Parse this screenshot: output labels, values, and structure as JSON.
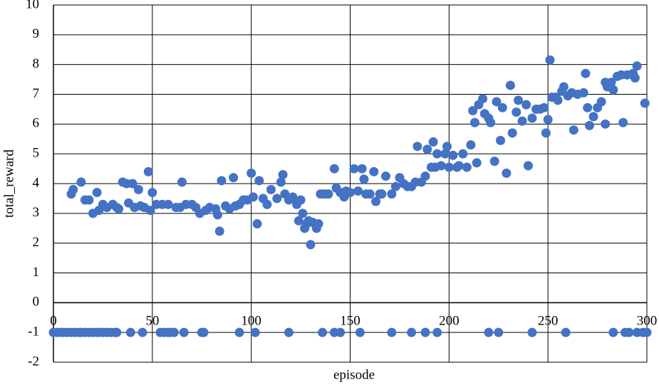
{
  "chart_data": {
    "type": "scatter",
    "xlabel": "episode",
    "ylabel": "total_reward",
    "xlim": [
      0,
      300
    ],
    "ylim": [
      -2,
      10
    ],
    "xticks": [
      0,
      50,
      100,
      150,
      200,
      250,
      300
    ],
    "yticks": [
      -2,
      -1,
      0,
      1,
      2,
      3,
      4,
      5,
      6,
      7,
      8,
      9,
      10
    ],
    "grid": true,
    "color": "#4472c4",
    "x": [
      0,
      2,
      4,
      5,
      7,
      9,
      11,
      13,
      14,
      16,
      18,
      20,
      22,
      23,
      25,
      27,
      29,
      31,
      32,
      39,
      45,
      54,
      56,
      58,
      59,
      61,
      66,
      75,
      76,
      94,
      102,
      119,
      136,
      142,
      145,
      155,
      171,
      181,
      188,
      194,
      220,
      225,
      242,
      259,
      283,
      289,
      291,
      295,
      298,
      300,
      9,
      10,
      14,
      16,
      18,
      20,
      22,
      23,
      25,
      27,
      30,
      32,
      33,
      35,
      37,
      38,
      40,
      41,
      43,
      44,
      46,
      48,
      49,
      50,
      52,
      55,
      58,
      62,
      64,
      65,
      67,
      70,
      72,
      74,
      77,
      79,
      82,
      83,
      84,
      85,
      87,
      89,
      91,
      92,
      94,
      96,
      98,
      100,
      101,
      103,
      104,
      106,
      108,
      110,
      113,
      115,
      116,
      117,
      119,
      121,
      123,
      124,
      125,
      126,
      127,
      128,
      129,
      130,
      131,
      133,
      134,
      135,
      137,
      139,
      142,
      143,
      145,
      147,
      148,
      150,
      152,
      154,
      156,
      157,
      158,
      160,
      162,
      163,
      165,
      166,
      168,
      171,
      173,
      175,
      177,
      179,
      181,
      183,
      184,
      186,
      188,
      189,
      191,
      192,
      193,
      194,
      196,
      198,
      199,
      200,
      202,
      204,
      205,
      207,
      209,
      211,
      212,
      213,
      214,
      215,
      217,
      218,
      220,
      221,
      223,
      224,
      226,
      227,
      229,
      231,
      232,
      234,
      235,
      237,
      239,
      240,
      242,
      244,
      246,
      248,
      249,
      250,
      251,
      252,
      254,
      255,
      257,
      258,
      260,
      262,
      263,
      265,
      268,
      269,
      270,
      271,
      273,
      275,
      277,
      279,
      279,
      280,
      282,
      283,
      285,
      287,
      288,
      290,
      293,
      295,
      294,
      299
    ],
    "y": [
      -1,
      -1,
      -1,
      -1,
      -1,
      -1,
      -1,
      -1,
      -1,
      -1,
      -1,
      -1,
      -1,
      -1,
      -1,
      -1,
      -1,
      -1,
      -1,
      -1,
      -1,
      -1,
      -1,
      -1,
      -1,
      -1,
      -1,
      -1,
      -1,
      -1,
      -1,
      -1,
      -1,
      -1,
      -1,
      -1,
      -1,
      -1,
      -1,
      -1,
      -1,
      -1,
      -1,
      -1,
      -1,
      -1,
      -1,
      -1,
      -1,
      -1,
      3.65,
      3.8,
      4.05,
      3.45,
      3.45,
      3.0,
      3.7,
      3.1,
      3.3,
      3.2,
      3.3,
      3.2,
      3.15,
      4.05,
      4.0,
      3.35,
      4.0,
      3.2,
      3.8,
      3.25,
      3.2,
      4.4,
      3.1,
      3.7,
      3.3,
      3.3,
      3.3,
      3.2,
      3.2,
      4.05,
      3.3,
      3.3,
      3.2,
      3.0,
      3.1,
      3.2,
      3.15,
      2.95,
      2.4,
      4.1,
      3.25,
      3.15,
      4.2,
      3.25,
      3.3,
      3.45,
      3.45,
      4.35,
      3.55,
      2.65,
      4.1,
      3.5,
      3.3,
      3.8,
      3.5,
      4.05,
      4.3,
      3.65,
      3.45,
      3.55,
      3.3,
      2.75,
      3.45,
      3.0,
      2.5,
      2.65,
      2.75,
      1.95,
      2.7,
      2.5,
      2.65,
      3.65,
      3.65,
      3.65,
      4.5,
      3.85,
      3.7,
      3.55,
      3.75,
      3.7,
      4.5,
      3.75,
      4.5,
      4.15,
      3.65,
      3.65,
      4.4,
      3.4,
      3.65,
      3.65,
      4.25,
      3.65,
      3.9,
      4.2,
      4.0,
      3.9,
      3.9,
      4.05,
      5.25,
      4.05,
      4.25,
      5.15,
      4.55,
      5.4,
      4.55,
      5.0,
      4.6,
      5.0,
      5.25,
      4.55,
      4.95,
      4.55,
      4.6,
      5.0,
      4.55,
      5.3,
      6.45,
      6.05,
      4.7,
      6.65,
      6.85,
      6.35,
      6.2,
      6.05,
      4.75,
      6.75,
      5.45,
      6.55,
      4.35,
      7.3,
      5.7,
      6.4,
      6.8,
      6.1,
      6.65,
      4.6,
      6.2,
      6.5,
      6.5,
      6.55,
      5.7,
      6.15,
      8.15,
      6.9,
      6.9,
      6.8,
      7.1,
      7.25,
      6.95,
      7.05,
      5.8,
      7.0,
      7.05,
      7.7,
      6.55,
      5.95,
      6.25,
      6.55,
      6.75,
      7.4,
      6.0,
      7.25,
      7.4,
      7.15,
      7.6,
      7.65,
      6.05,
      7.65,
      7.7,
      7.95,
      7.55,
      6.7
    ]
  }
}
